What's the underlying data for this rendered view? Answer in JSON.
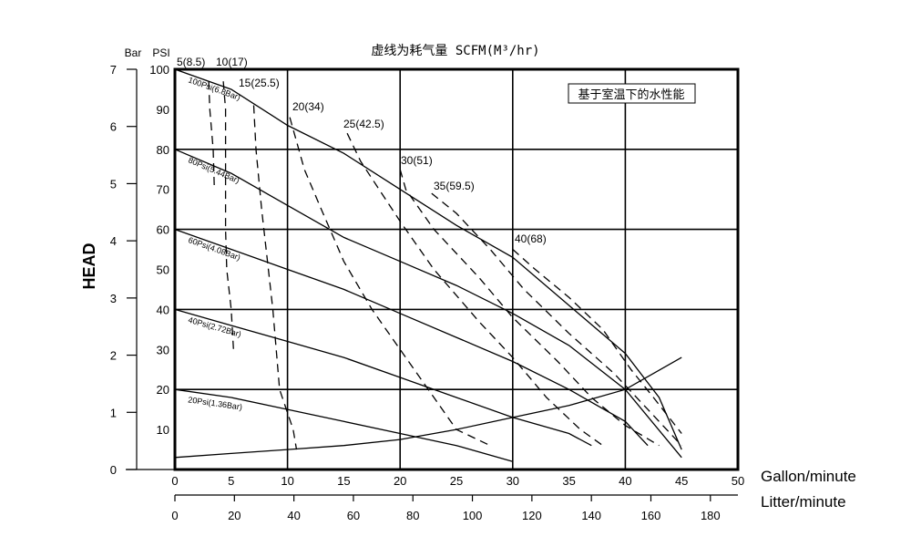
{
  "chart_data": {
    "type": "line",
    "title": "虚线为耗气量 SCFM(M³/hr)",
    "note": "基于室温下的水性能",
    "ylabel": "HEAD",
    "xlabel_primary": "Gallon/minute",
    "xlabel_secondary": "Litter/minute",
    "y_units": [
      "Bar",
      "PSI"
    ],
    "xlim": [
      0,
      50
    ],
    "ylim_psi": [
      0,
      100
    ],
    "ylim_bar": [
      0,
      7
    ],
    "x_ticks_gpm": [
      "0",
      "5",
      "10",
      "15",
      "20",
      "25",
      "30",
      "35",
      "40",
      "45",
      "50"
    ],
    "x_ticks_lpm": [
      "0",
      "20",
      "40",
      "60",
      "80",
      "100",
      "120",
      "140",
      "160",
      "180"
    ],
    "y_ticks_psi": [
      "10",
      "20",
      "30",
      "40",
      "50",
      "60",
      "70",
      "80",
      "90",
      "100"
    ],
    "y_ticks_bar": [
      "0",
      "1",
      "2",
      "3",
      "4",
      "5",
      "6",
      "7"
    ],
    "grid": true,
    "series": [
      {
        "name": "100Psi(6.8Bar)",
        "style": "solid",
        "points": [
          [
            0,
            100
          ],
          [
            5,
            95
          ],
          [
            10,
            86
          ],
          [
            15,
            79
          ],
          [
            20,
            70
          ],
          [
            25,
            61
          ],
          [
            30,
            53
          ],
          [
            35,
            41
          ],
          [
            40,
            29
          ],
          [
            43,
            18
          ],
          [
            45,
            5
          ]
        ]
      },
      {
        "name": "80Psi(5.44Bar)",
        "style": "solid",
        "points": [
          [
            0,
            80
          ],
          [
            5,
            74
          ],
          [
            10,
            66
          ],
          [
            15,
            58
          ],
          [
            20,
            52
          ],
          [
            25,
            46
          ],
          [
            30,
            39
          ],
          [
            35,
            31
          ],
          [
            40,
            20
          ],
          [
            45,
            3
          ]
        ]
      },
      {
        "name": "60Psi(4.08Bar)",
        "style": "solid",
        "points": [
          [
            0,
            60
          ],
          [
            5,
            55
          ],
          [
            10,
            50
          ],
          [
            15,
            45
          ],
          [
            20,
            39
          ],
          [
            25,
            33
          ],
          [
            30,
            27
          ],
          [
            35,
            20
          ],
          [
            40,
            12
          ],
          [
            42,
            6
          ]
        ]
      },
      {
        "name": "40Psi(2.72Bar)",
        "style": "solid",
        "points": [
          [
            0,
            40
          ],
          [
            5,
            36
          ],
          [
            10,
            32
          ],
          [
            15,
            28
          ],
          [
            20,
            23
          ],
          [
            25,
            18
          ],
          [
            30,
            13
          ],
          [
            35,
            9
          ],
          [
            37,
            6
          ]
        ]
      },
      {
        "name": "20Psi(1.36Bar)",
        "style": "solid",
        "points": [
          [
            0,
            20
          ],
          [
            5,
            18
          ],
          [
            10,
            15
          ],
          [
            15,
            12
          ],
          [
            20,
            9
          ],
          [
            25,
            6
          ],
          [
            30,
            2
          ]
        ]
      },
      {
        "name": "",
        "style": "solid",
        "points": [
          [
            0,
            3
          ],
          [
            5,
            4
          ],
          [
            10,
            5
          ],
          [
            15,
            6
          ],
          [
            20,
            7.5
          ],
          [
            25,
            10
          ],
          [
            30,
            13
          ],
          [
            35,
            16
          ],
          [
            40,
            20
          ],
          [
            45,
            28
          ]
        ]
      },
      {
        "name": "5(8.5)",
        "style": "dash",
        "points": [
          [
            3,
            97
          ],
          [
            3.1,
            90
          ],
          [
            3.4,
            80
          ],
          [
            3.5,
            70
          ]
        ]
      },
      {
        "name": "10(17)",
        "style": "dash",
        "points": [
          [
            4.3,
            97
          ],
          [
            4.5,
            90
          ],
          [
            4.5,
            75
          ],
          [
            4.5,
            60
          ],
          [
            4.6,
            50
          ],
          [
            5,
            40
          ],
          [
            5.2,
            30
          ]
        ]
      },
      {
        "name": "15(25.5)",
        "style": "dash",
        "points": [
          [
            7,
            91
          ],
          [
            7.2,
            80
          ],
          [
            7.7,
            65
          ],
          [
            8.3,
            50
          ],
          [
            8.7,
            40
          ],
          [
            9,
            30
          ],
          [
            9.3,
            20
          ],
          [
            10.5,
            10
          ],
          [
            10.8,
            5
          ]
        ]
      },
      {
        "name": "20(34)",
        "style": "dash",
        "points": [
          [
            10.2,
            88
          ],
          [
            11.5,
            75
          ],
          [
            13,
            65
          ],
          [
            15,
            52
          ],
          [
            17.5,
            40
          ],
          [
            20,
            30
          ],
          [
            22.5,
            20
          ],
          [
            25,
            10
          ],
          [
            28,
            6
          ]
        ]
      },
      {
        "name": "25(42.5)",
        "style": "dash",
        "points": [
          [
            15.3,
            84
          ],
          [
            16.5,
            77
          ],
          [
            20,
            62
          ],
          [
            23,
            50
          ],
          [
            27,
            37
          ],
          [
            30,
            28
          ],
          [
            33,
            18
          ],
          [
            36,
            10
          ],
          [
            38,
            6
          ]
        ]
      },
      {
        "name": "30(51)",
        "style": "dash",
        "points": [
          [
            20,
            75
          ],
          [
            20.5,
            70
          ],
          [
            23,
            60
          ],
          [
            27,
            48
          ],
          [
            30,
            38
          ],
          [
            34,
            27
          ],
          [
            37,
            18
          ],
          [
            40,
            11
          ],
          [
            43,
            6
          ]
        ]
      },
      {
        "name": "35(59.5)",
        "style": "dash",
        "points": [
          [
            22.8,
            69
          ],
          [
            25,
            64
          ],
          [
            28,
            55
          ],
          [
            31,
            45
          ],
          [
            35,
            34
          ],
          [
            39,
            24
          ],
          [
            42,
            15
          ],
          [
            45,
            6
          ]
        ]
      },
      {
        "name": "40(68)",
        "style": "dash",
        "points": [
          [
            30,
            55
          ],
          [
            32,
            50
          ],
          [
            35,
            43
          ],
          [
            38,
            35
          ],
          [
            40.5,
            25
          ],
          [
            42.5,
            18
          ],
          [
            45,
            9
          ]
        ]
      }
    ]
  }
}
